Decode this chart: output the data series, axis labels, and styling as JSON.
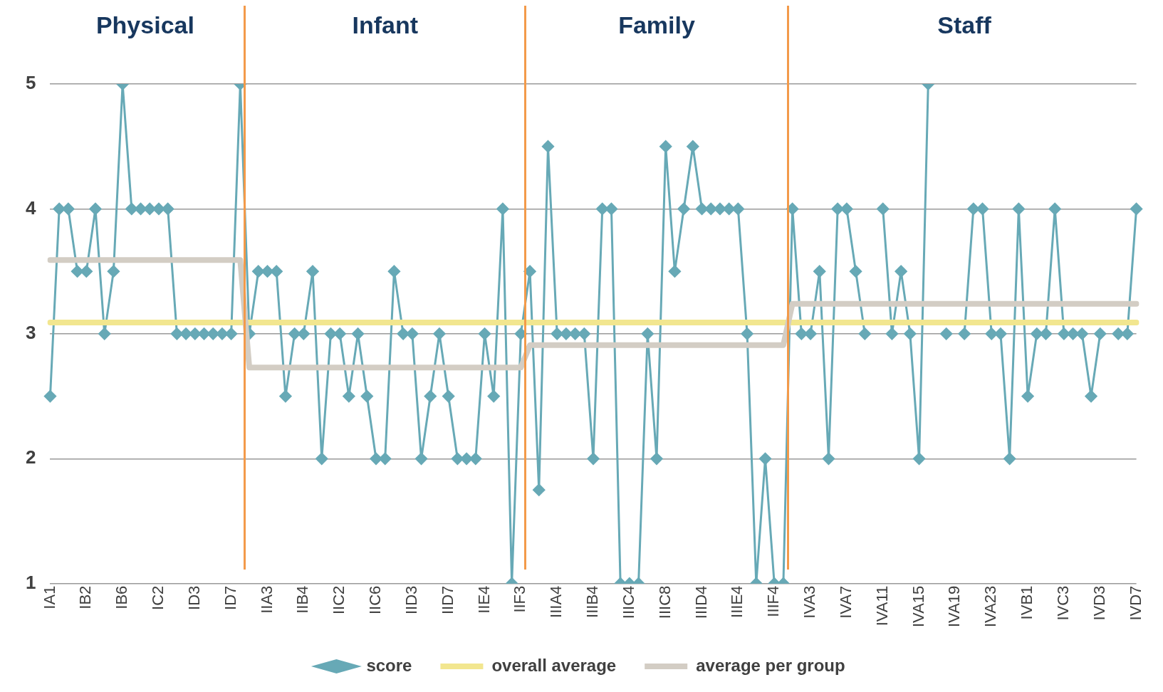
{
  "chart_data": {
    "type": "line",
    "annotations": [
      "Physical",
      "Infant",
      "Family",
      "Staff"
    ],
    "categories": [
      "IA1",
      null,
      null,
      null,
      "IB2",
      null,
      null,
      null,
      "IB6",
      null,
      null,
      null,
      "IC2",
      null,
      null,
      null,
      "ID3",
      null,
      null,
      null,
      "ID7",
      null,
      null,
      null,
      "IIA3",
      null,
      null,
      null,
      "IIB4",
      null,
      null,
      null,
      "IIC2",
      null,
      null,
      null,
      "IIC6",
      null,
      null,
      null,
      "IID3",
      null,
      null,
      null,
      "IID7",
      null,
      null,
      null,
      "IIE4",
      null,
      null,
      null,
      "IIF3",
      null,
      null,
      null,
      "IIIA4",
      null,
      null,
      null,
      "IIIB4",
      null,
      null,
      null,
      "IIIC4",
      null,
      null,
      null,
      "IIIC8",
      null,
      null,
      null,
      "IIID4",
      null,
      null,
      null,
      "IIIE4",
      null,
      null,
      null,
      "IIIF4",
      null,
      null,
      null,
      "IVA3",
      null,
      null,
      null,
      "IVA7",
      null,
      null,
      null,
      "IVA11",
      null,
      null,
      null,
      "IVA15",
      null,
      null,
      null,
      "IVA19",
      null,
      null,
      null,
      "IVA23",
      null,
      null,
      null,
      "IVB1",
      null,
      null,
      null,
      "IVC3",
      null,
      null,
      null,
      "IVD3",
      null,
      null,
      null,
      "IVD7"
    ],
    "series": [
      {
        "name": "score",
        "color": "#67a9b6",
        "marker": "diamond",
        "values": [
          2.5,
          4,
          4,
          3.5,
          3.5,
          4,
          3,
          3.5,
          5,
          4,
          4,
          4,
          4,
          4,
          3,
          3,
          3,
          3,
          3,
          3,
          3,
          5,
          3,
          3.5,
          3.5,
          3.5,
          2.5,
          3,
          3,
          3.5,
          2,
          3,
          3,
          2.5,
          3,
          2.5,
          2,
          2,
          3.5,
          3,
          3,
          2,
          2.5,
          3,
          2.5,
          2,
          2,
          2,
          3,
          2.5,
          4,
          1,
          3,
          3.5,
          1.75,
          4.5,
          3,
          3,
          3,
          3,
          2,
          4,
          4,
          1,
          1,
          1,
          3,
          2,
          4.5,
          3.5,
          4,
          4.5,
          4,
          4,
          4,
          4,
          4,
          3,
          1,
          2,
          1,
          1,
          4,
          3,
          3,
          3.5,
          2,
          4,
          4,
          3.5,
          3,
          null,
          4,
          3,
          3.5,
          3,
          2,
          5,
          null,
          3,
          null,
          3,
          4,
          4,
          3,
          3,
          2,
          4,
          2.5,
          3,
          3,
          4,
          3,
          3,
          3,
          2.5,
          3,
          null,
          3,
          3,
          4
        ]
      },
      {
        "name": "overall average",
        "color": "#f2e68f",
        "marker": "none",
        "values": [
          3.09,
          3.09,
          3.09,
          3.09,
          3.09,
          3.09,
          3.09,
          3.09,
          3.09,
          3.09,
          3.09,
          3.09,
          3.09,
          3.09,
          3.09,
          3.09,
          3.09,
          3.09,
          3.09,
          3.09,
          3.09,
          3.09,
          3.09,
          3.09,
          3.09,
          3.09,
          3.09,
          3.09,
          3.09,
          3.09,
          3.09,
          3.09,
          3.09,
          3.09,
          3.09,
          3.09,
          3.09,
          3.09,
          3.09,
          3.09,
          3.09,
          3.09,
          3.09,
          3.09,
          3.09,
          3.09,
          3.09,
          3.09,
          3.09,
          3.09,
          3.09,
          3.09,
          3.09,
          3.09,
          3.09,
          3.09,
          3.09,
          3.09,
          3.09,
          3.09,
          3.09,
          3.09,
          3.09,
          3.09,
          3.09,
          3.09,
          3.09,
          3.09,
          3.09,
          3.09,
          3.09,
          3.09,
          3.09,
          3.09,
          3.09,
          3.09,
          3.09,
          3.09,
          3.09,
          3.09,
          3.09,
          3.09,
          3.09,
          3.09,
          3.09,
          3.09,
          3.09,
          3.09,
          3.09,
          3.09,
          3.09,
          3.09,
          3.09,
          3.09,
          3.09,
          3.09,
          3.09,
          3.09,
          3.09,
          3.09,
          3.09,
          3.09,
          3.09,
          3.09,
          3.09,
          3.09,
          3.09,
          3.09,
          3.09,
          3.09,
          3.09,
          3.09,
          3.09,
          3.09,
          3.09,
          3.09,
          3.09,
          3.09,
          3.09,
          3.09,
          3.09
        ]
      },
      {
        "name": "average per group",
        "color": "#d3cdc4",
        "marker": "none",
        "values": [
          3.59,
          3.59,
          3.59,
          3.59,
          3.59,
          3.59,
          3.59,
          3.59,
          3.59,
          3.59,
          3.59,
          3.59,
          3.59,
          3.59,
          3.59,
          3.59,
          3.59,
          3.59,
          3.59,
          3.59,
          3.59,
          3.59,
          2.73,
          2.73,
          2.73,
          2.73,
          2.73,
          2.73,
          2.73,
          2.73,
          2.73,
          2.73,
          2.73,
          2.73,
          2.73,
          2.73,
          2.73,
          2.73,
          2.73,
          2.73,
          2.73,
          2.73,
          2.73,
          2.73,
          2.73,
          2.73,
          2.73,
          2.73,
          2.73,
          2.73,
          2.73,
          2.73,
          2.73,
          2.91,
          2.91,
          2.91,
          2.91,
          2.91,
          2.91,
          2.91,
          2.91,
          2.91,
          2.91,
          2.91,
          2.91,
          2.91,
          2.91,
          2.91,
          2.91,
          2.91,
          2.91,
          2.91,
          2.91,
          2.91,
          2.91,
          2.91,
          2.91,
          2.91,
          2.91,
          2.91,
          2.91,
          2.91,
          3.24,
          3.24,
          3.24,
          3.24,
          3.24,
          3.24,
          3.24,
          3.24,
          3.24,
          3.24,
          3.24,
          3.24,
          3.24,
          3.24,
          3.24,
          3.24,
          3.24,
          3.24,
          3.24,
          3.24,
          3.24,
          3.24,
          3.24,
          3.24,
          3.24,
          3.24,
          3.24,
          3.24,
          3.24,
          3.24,
          3.24,
          3.24,
          3.24,
          3.24,
          3.24,
          3.24,
          3.24,
          3.24,
          3.24
        ]
      }
    ],
    "ylim": [
      1,
      5
    ],
    "yticks": [
      1,
      2,
      3,
      4,
      5
    ],
    "grid": "y",
    "legend": "bottom"
  }
}
